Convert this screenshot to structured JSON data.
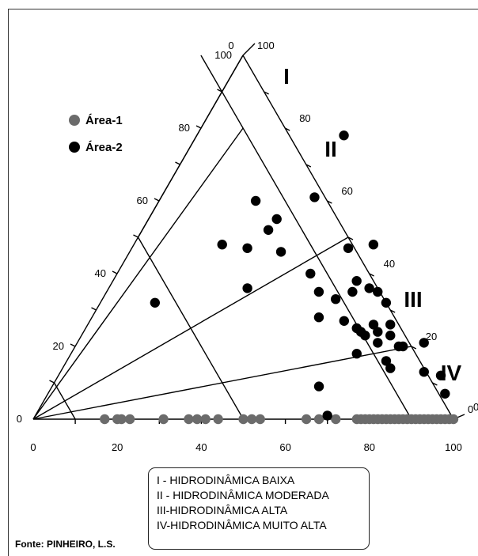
{
  "chart_data": {
    "type": "ternary-scatter",
    "bottom_ticks": [
      "0",
      "20",
      "40",
      "60",
      "80",
      "100"
    ],
    "left_ticks": [
      "100",
      "80",
      "60",
      "40",
      "20",
      "0"
    ],
    "right_ticks": [
      "100",
      "80",
      "60",
      "40",
      "20",
      "0"
    ],
    "zones": [
      "I",
      "II",
      "III",
      "IV"
    ],
    "legend": {
      "area1": {
        "label": "Área-1",
        "color": "#6b6b6b"
      },
      "area2": {
        "label": "Área-2",
        "color": "#000000"
      }
    },
    "series": [
      {
        "name": "Área-1",
        "points": [
          {
            "b": 17,
            "t": 0
          },
          {
            "b": 20,
            "t": 0
          },
          {
            "b": 21,
            "t": 0
          },
          {
            "b": 23,
            "t": 0
          },
          {
            "b": 31,
            "t": 0
          },
          {
            "b": 37,
            "t": 0
          },
          {
            "b": 39,
            "t": 0
          },
          {
            "b": 41,
            "t": 0
          },
          {
            "b": 44,
            "t": 0
          },
          {
            "b": 50,
            "t": 0
          },
          {
            "b": 52,
            "t": 0
          },
          {
            "b": 54,
            "t": 0
          },
          {
            "b": 65,
            "t": 0
          },
          {
            "b": 68,
            "t": 0
          },
          {
            "b": 72,
            "t": 0
          },
          {
            "b": 77,
            "t": 0
          },
          {
            "b": 78,
            "t": 0
          },
          {
            "b": 79,
            "t": 0
          },
          {
            "b": 80,
            "t": 0
          },
          {
            "b": 81,
            "t": 0
          },
          {
            "b": 82,
            "t": 0
          },
          {
            "b": 83,
            "t": 0
          },
          {
            "b": 84,
            "t": 0
          },
          {
            "b": 85,
            "t": 0
          },
          {
            "b": 86,
            "t": 0
          },
          {
            "b": 87,
            "t": 0
          },
          {
            "b": 88,
            "t": 0
          },
          {
            "b": 89,
            "t": 0
          },
          {
            "b": 90,
            "t": 0
          },
          {
            "b": 91,
            "t": 0
          },
          {
            "b": 92,
            "t": 0
          },
          {
            "b": 93,
            "t": 0
          },
          {
            "b": 94,
            "t": 0
          },
          {
            "b": 95,
            "t": 0
          },
          {
            "b": 96,
            "t": 0
          },
          {
            "b": 97,
            "t": 0
          },
          {
            "b": 98,
            "t": 0
          },
          {
            "b": 99,
            "t": 0
          },
          {
            "b": 100,
            "t": 0
          }
        ]
      },
      {
        "name": "Área-2",
        "points": [
          {
            "b": 74,
            "t": 78
          },
          {
            "b": 67,
            "t": 61
          },
          {
            "b": 53,
            "t": 60
          },
          {
            "b": 58,
            "t": 55
          },
          {
            "b": 56,
            "t": 52
          },
          {
            "b": 51,
            "t": 47
          },
          {
            "b": 45,
            "t": 48
          },
          {
            "b": 59,
            "t": 46
          },
          {
            "b": 75,
            "t": 47
          },
          {
            "b": 81,
            "t": 48
          },
          {
            "b": 51,
            "t": 36
          },
          {
            "b": 29,
            "t": 32
          },
          {
            "b": 66,
            "t": 40
          },
          {
            "b": 77,
            "t": 38
          },
          {
            "b": 68,
            "t": 35
          },
          {
            "b": 76,
            "t": 35
          },
          {
            "b": 82,
            "t": 35
          },
          {
            "b": 80,
            "t": 36
          },
          {
            "b": 72,
            "t": 33
          },
          {
            "b": 84,
            "t": 32
          },
          {
            "b": 68,
            "t": 28
          },
          {
            "b": 74,
            "t": 27
          },
          {
            "b": 77,
            "t": 25
          },
          {
            "b": 81,
            "t": 26
          },
          {
            "b": 78,
            "t": 24
          },
          {
            "b": 85,
            "t": 26
          },
          {
            "b": 79,
            "t": 23
          },
          {
            "b": 85,
            "t": 23
          },
          {
            "b": 82,
            "t": 24
          },
          {
            "b": 88,
            "t": 20
          },
          {
            "b": 82,
            "t": 21
          },
          {
            "b": 93,
            "t": 21
          },
          {
            "b": 87,
            "t": 20
          },
          {
            "b": 77,
            "t": 18
          },
          {
            "b": 84,
            "t": 16
          },
          {
            "b": 85,
            "t": 14
          },
          {
            "b": 93,
            "t": 13
          },
          {
            "b": 97,
            "t": 12
          },
          {
            "b": 68,
            "t": 9
          },
          {
            "b": 98,
            "t": 7
          },
          {
            "b": 70,
            "t": 1
          }
        ]
      }
    ]
  },
  "legend_box": [
    "I  - HIDRODINÂMICA BAIXA",
    "II - HIDRODINÂMICA MODERADA",
    "III-HIDRODINÂMICA ALTA",
    "IV-HIDRODINÂMICA MUITO ALTA"
  ],
  "source": "Fonte: PINHEIRO,  L.S."
}
